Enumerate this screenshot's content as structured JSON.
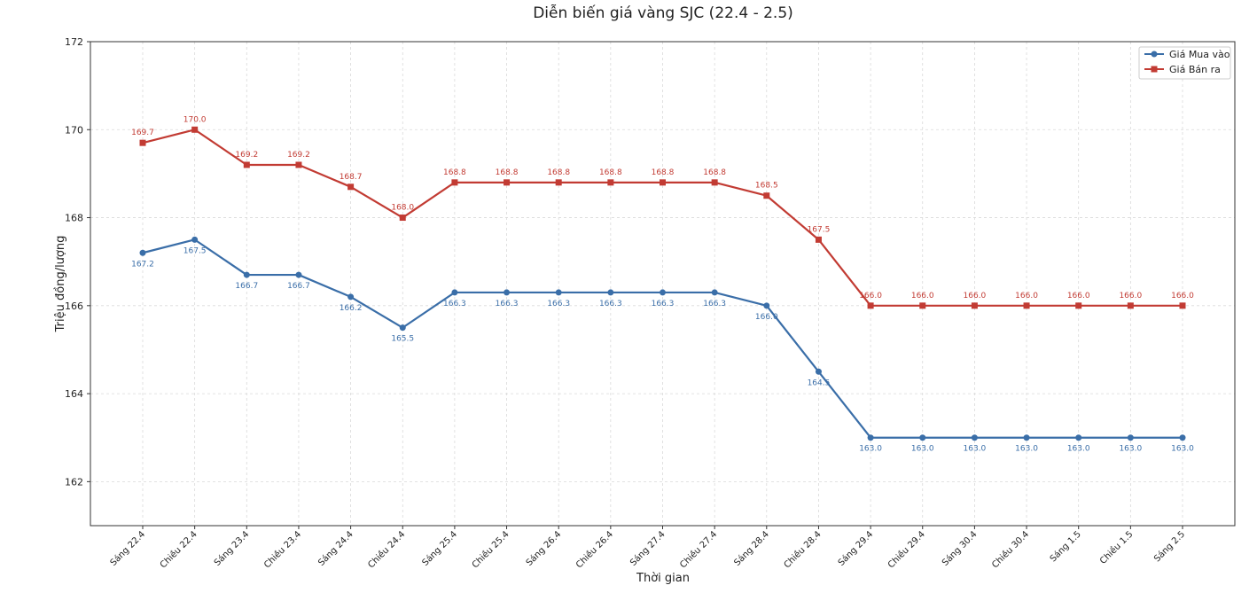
{
  "chart_data": {
    "type": "line",
    "title": "Diễn biến giá vàng SJC (22.4 - 2.5)",
    "xlabel": "Thời gian",
    "ylabel": "Triệu đồng/lượng",
    "ylim": [
      161,
      172
    ],
    "yticks": [
      162,
      164,
      166,
      168,
      170,
      172
    ],
    "grid": true,
    "legend_position": "top-right",
    "categories": [
      "Sáng 22.4",
      "Chiều 22.4",
      "Sáng 23.4",
      "Chiều 23.4",
      "Sáng 24.4",
      "Chiều 24.4",
      "Sáng 25.4",
      "Chiều 25.4",
      "Sáng 26.4",
      "Chiều 26.4",
      "Sáng 27.4",
      "Chiều 27.4",
      "Sáng 28.4",
      "Chiều 28.4",
      "Sáng 29.4",
      "Chiều 29.4",
      "Sáng 30.4",
      "Chiều 30.4",
      "Sáng 1.5",
      "Chiều 1.5",
      "Sáng 2.5"
    ],
    "series": [
      {
        "name": "Giá Mua vào",
        "color": "#3a6ea8",
        "marker": "circle",
        "label_position": "below",
        "values": [
          167.2,
          167.5,
          166.7,
          166.7,
          166.2,
          165.5,
          166.3,
          166.3,
          166.3,
          166.3,
          166.3,
          166.3,
          166.0,
          164.5,
          163.0,
          163.0,
          163.0,
          163.0,
          163.0,
          163.0,
          163.0
        ],
        "labels": [
          "167.2",
          "167.5",
          "166.7",
          "166.7",
          "166.2",
          "165.5",
          "166.3",
          "166.3",
          "166.3",
          "166.3",
          "166.3",
          "166.3",
          "166.0",
          "164.5",
          "163.0",
          "163.0",
          "163.0",
          "163.0",
          "163.0",
          "163.0",
          "163.0"
        ]
      },
      {
        "name": "Giá Bán ra",
        "color": "#c23b33",
        "marker": "square",
        "label_position": "above",
        "values": [
          169.7,
          170.0,
          169.2,
          169.2,
          168.7,
          168.0,
          168.8,
          168.8,
          168.8,
          168.8,
          168.8,
          168.8,
          168.5,
          167.5,
          166.0,
          166.0,
          166.0,
          166.0,
          166.0,
          166.0,
          166.0
        ],
        "labels": [
          "169.7",
          "170.0",
          "169.2",
          "169.2",
          "168.7",
          "168.0",
          "168.8",
          "168.8",
          "168.8",
          "168.8",
          "168.8",
          "168.8",
          "168.5",
          "167.5",
          "166.0",
          "166.0",
          "166.0",
          "166.0",
          "166.0",
          "166.0",
          "166.0"
        ]
      }
    ]
  }
}
